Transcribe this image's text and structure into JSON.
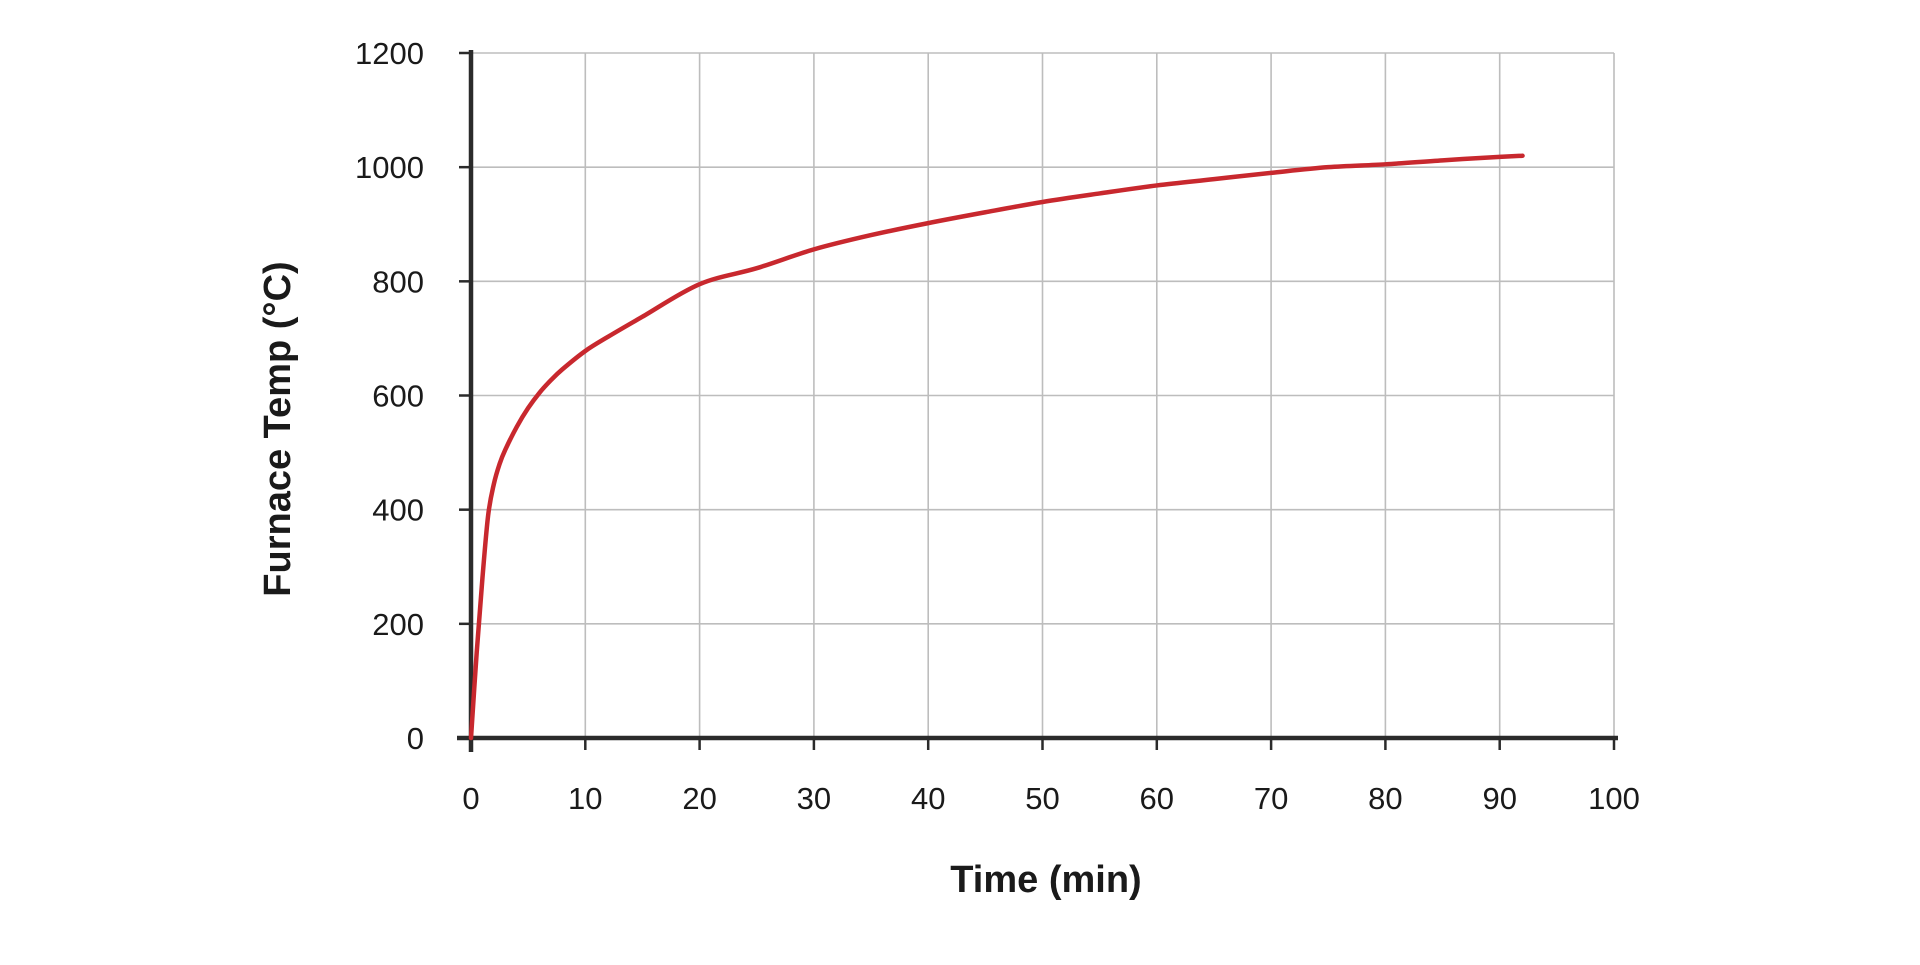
{
  "chart_data": {
    "type": "line",
    "title": "",
    "xlabel": "Time (min)",
    "ylabel": "Furnace Temp (°C)",
    "xlim": [
      0,
      100
    ],
    "ylim": [
      0,
      1200
    ],
    "x_ticks": [
      "0",
      "10",
      "20",
      "30",
      "40",
      "50",
      "60",
      "70",
      "80",
      "90",
      "100"
    ],
    "y_ticks": [
      "0",
      "200",
      "400",
      "600",
      "800",
      "1000",
      "1200"
    ],
    "grid": true,
    "colors": {
      "series": "#c8282e",
      "grid": "#bdbdbd",
      "axis": "#2b2b2b"
    },
    "series": [
      {
        "x": [
          0,
          0.5,
          1,
          1.5,
          2,
          2.5,
          3,
          4,
          5,
          6,
          7,
          8,
          10,
          12,
          15,
          20,
          25,
          30,
          35,
          40,
          45,
          50,
          55,
          60,
          65,
          70,
          75,
          80,
          85,
          90,
          92
        ],
        "values": [
          0,
          150,
          280,
          390,
          445,
          480,
          505,
          545,
          578,
          605,
          627,
          646,
          678,
          703,
          738,
          795,
          823,
          856,
          881,
          902,
          921,
          939,
          954,
          968,
          979,
          990,
          1000,
          1005,
          1012,
          1018,
          1020
        ]
      }
    ]
  }
}
